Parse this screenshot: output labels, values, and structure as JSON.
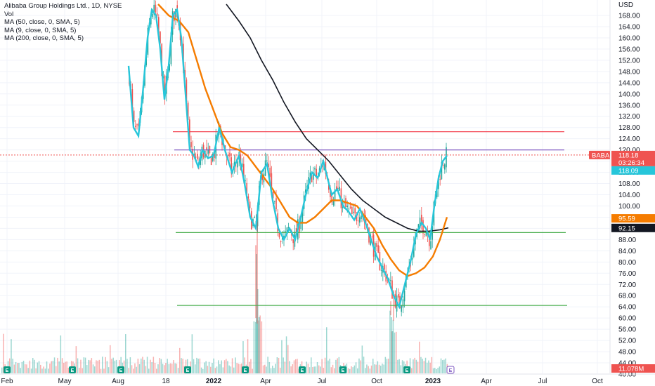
{
  "legend": {
    "title": "Alibaba Group Holdings Ltd., 1D, NYSE",
    "vol": "Vol",
    "ma50": "MA (50, close, 0, SMA, 5)",
    "ma9": "MA (9, close, 0, SMA, 5)",
    "ma200": "MA (200, close, 0, SMA, 5)"
  },
  "axis": {
    "currency": "USD",
    "price_ticks": [
      "168.00",
      "164.00",
      "160.00",
      "156.00",
      "152.00",
      "148.00",
      "144.00",
      "140.00",
      "136.00",
      "132.00",
      "128.00",
      "124.00",
      "120.00",
      "116.00",
      "112.00",
      "108.00",
      "104.00",
      "100.00",
      "96.00",
      "92.00",
      "88.00",
      "84.00",
      "80.00",
      "76.00",
      "72.00",
      "68.00",
      "64.00",
      "60.00",
      "56.00",
      "52.00",
      "48.00",
      "44.00",
      "40.00"
    ],
    "x_ticks": [
      "Feb",
      "May",
      "Aug",
      "18",
      "2022",
      "Apr",
      "Jul",
      "Oct",
      "2023",
      "Apr",
      "Jul",
      "Oct"
    ]
  },
  "tags": {
    "symbol": "BABA",
    "price": "118.18",
    "countdown": "03:26:34",
    "ma9": "118.09",
    "ma50": "95.59",
    "ma200": "92.15",
    "volume": "11.078M"
  },
  "earnings_marker": "E",
  "colors": {
    "up": "#26a69a",
    "down": "#ef5350",
    "ma9": "#26c6da",
    "ma50": "#f57c00",
    "ma200": "#131722",
    "red_line": "#f23645",
    "purple_line": "#7e57c2",
    "green_line": "#4caf50"
  },
  "chart_data": {
    "type": "candlestick",
    "y_axis": {
      "min": 40,
      "max": 172,
      "unit": "USD"
    },
    "horizontal_lines": [
      {
        "color": "red",
        "price": 126.5
      },
      {
        "color": "purple",
        "price": 120.0
      },
      {
        "color": "green",
        "price": 90.5
      },
      {
        "color": "green",
        "price": 64.5
      }
    ],
    "ma9_path": [
      [
        183,
        150
      ],
      [
        190,
        128
      ],
      [
        197,
        125
      ],
      [
        203,
        140
      ],
      [
        210,
        160
      ],
      [
        216,
        170
      ],
      [
        222,
        168
      ],
      [
        228,
        156
      ],
      [
        234,
        138
      ],
      [
        240,
        150
      ],
      [
        246,
        168
      ],
      [
        252,
        170
      ],
      [
        258,
        160
      ],
      [
        264,
        140
      ],
      [
        270,
        120
      ],
      [
        276,
        118
      ],
      [
        282,
        114
      ],
      [
        288,
        120
      ],
      [
        296,
        117
      ],
      [
        304,
        118
      ],
      [
        312,
        128
      ],
      [
        320,
        120
      ],
      [
        330,
        112
      ],
      [
        340,
        118
      ],
      [
        348,
        108
      ],
      [
        356,
        96
      ],
      [
        364,
        92
      ],
      [
        372,
        112
      ],
      [
        380,
        115
      ],
      [
        388,
        102
      ],
      [
        396,
        92
      ],
      [
        404,
        88
      ],
      [
        412,
        92
      ],
      [
        420,
        88
      ],
      [
        428,
        96
      ],
      [
        436,
        105
      ],
      [
        444,
        112
      ],
      [
        452,
        110
      ],
      [
        460,
        116
      ],
      [
        466,
        110
      ],
      [
        472,
        104
      ],
      [
        480,
        106
      ],
      [
        488,
        100
      ],
      [
        496,
        98
      ],
      [
        504,
        95
      ],
      [
        512,
        99
      ],
      [
        520,
        94
      ],
      [
        528,
        88
      ],
      [
        536,
        82
      ],
      [
        544,
        78
      ],
      [
        552,
        74
      ],
      [
        560,
        68
      ],
      [
        568,
        64
      ],
      [
        576,
        72
      ],
      [
        584,
        80
      ],
      [
        592,
        90
      ],
      [
        600,
        94
      ],
      [
        606,
        92
      ],
      [
        612,
        88
      ],
      [
        618,
        100
      ],
      [
        624,
        110
      ],
      [
        630,
        116
      ],
      [
        636,
        118
      ]
    ],
    "ma50_path": [
      [
        225,
        172
      ],
      [
        240,
        168
      ],
      [
        255,
        166
      ],
      [
        268,
        162
      ],
      [
        280,
        152
      ],
      [
        292,
        142
      ],
      [
        304,
        134
      ],
      [
        316,
        126
      ],
      [
        328,
        121
      ],
      [
        340,
        120
      ],
      [
        352,
        118
      ],
      [
        364,
        114
      ],
      [
        376,
        110
      ],
      [
        388,
        106
      ],
      [
        400,
        101
      ],
      [
        412,
        96
      ],
      [
        424,
        94
      ],
      [
        436,
        94
      ],
      [
        448,
        96
      ],
      [
        460,
        99
      ],
      [
        472,
        102
      ],
      [
        484,
        102
      ],
      [
        496,
        101
      ],
      [
        508,
        100
      ],
      [
        520,
        96
      ],
      [
        532,
        92
      ],
      [
        544,
        86
      ],
      [
        556,
        81
      ],
      [
        568,
        77
      ],
      [
        580,
        75
      ],
      [
        592,
        76
      ],
      [
        604,
        78
      ],
      [
        616,
        82
      ],
      [
        626,
        88
      ],
      [
        636,
        96
      ]
    ],
    "ma200_path": [
      [
        322,
        172
      ],
      [
        340,
        166
      ],
      [
        356,
        160
      ],
      [
        372,
        152
      ],
      [
        388,
        145
      ],
      [
        404,
        137
      ],
      [
        420,
        130
      ],
      [
        436,
        124
      ],
      [
        452,
        120
      ],
      [
        468,
        116
      ],
      [
        484,
        111
      ],
      [
        500,
        106
      ],
      [
        516,
        102
      ],
      [
        532,
        99
      ],
      [
        548,
        96
      ],
      [
        564,
        94
      ],
      [
        580,
        92
      ],
      [
        596,
        91
      ],
      [
        610,
        91
      ],
      [
        626,
        91.5
      ],
      [
        638,
        92.2
      ]
    ],
    "last_close": 118.18
  }
}
